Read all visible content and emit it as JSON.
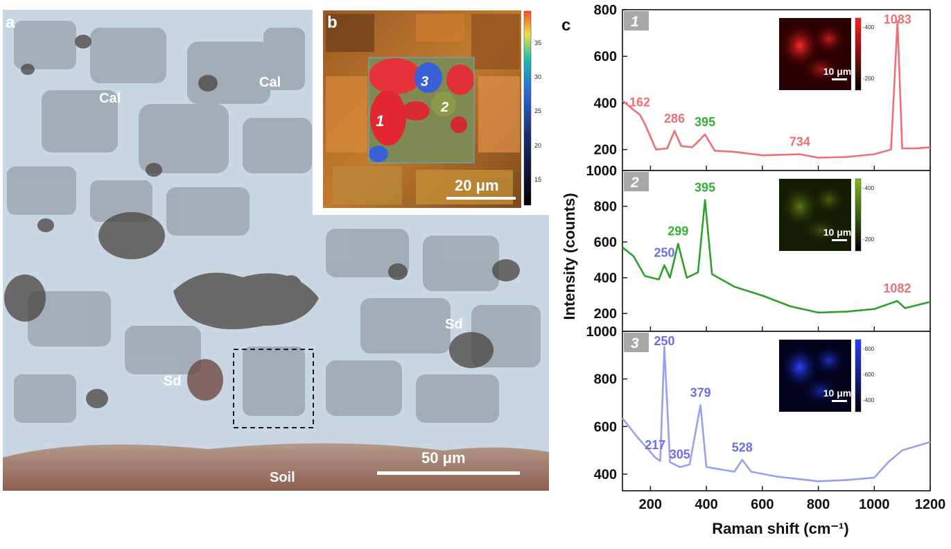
{
  "panel_a": {
    "letter": "a",
    "regions": [
      {
        "text": "Cal"
      },
      {
        "text": "Cal"
      },
      {
        "text": "Sd"
      },
      {
        "text": "Sd"
      },
      {
        "text": "Soil"
      }
    ],
    "scale_label": "50 μm"
  },
  "panel_b": {
    "letter": "b",
    "points": [
      "1",
      "2",
      "3"
    ],
    "scale_label": "20 μm",
    "colorbar_ticks": [
      "35",
      "30",
      "25",
      "20",
      "15"
    ]
  },
  "panel_c": {
    "letter": "c",
    "xlabel": "Raman shift (cm⁻¹)",
    "ylabel": "Intensity (counts)",
    "xticks": [
      "200",
      "400",
      "600",
      "800",
      "1000",
      "1200"
    ],
    "inset_scale": "10 μm"
  },
  "colors": {
    "spectrum1": "#ef6f72",
    "spectrum2": "#2ca02c",
    "spectrum3": "#98a0ef",
    "label_green": "#32b232",
    "label_blue": "#6b6ee8"
  },
  "chart_data": [
    {
      "type": "line",
      "panel_index": "1",
      "xlim": [
        100,
        1200
      ],
      "ylim": [
        110,
        800
      ],
      "yticks": [
        "200",
        "400",
        "600",
        "800"
      ],
      "inset_ticks": [
        "400",
        "200"
      ],
      "peaks": [
        {
          "x": 162,
          "label": "162"
        },
        {
          "x": 286,
          "label": "286"
        },
        {
          "x": 395,
          "label": "395"
        },
        {
          "x": 734,
          "label": "734"
        },
        {
          "x": 1083,
          "label": "1083"
        }
      ],
      "x": [
        100,
        140,
        162,
        180,
        220,
        260,
        286,
        310,
        350,
        395,
        430,
        500,
        600,
        734,
        800,
        900,
        1000,
        1060,
        1083,
        1100,
        1150,
        1200
      ],
      "y": [
        410,
        370,
        350,
        310,
        200,
        205,
        280,
        215,
        210,
        265,
        195,
        190,
        175,
        180,
        165,
        168,
        180,
        200,
        750,
        205,
        205,
        210
      ]
    },
    {
      "type": "line",
      "panel_index": "2",
      "xlim": [
        100,
        1200
      ],
      "ylim": [
        100,
        1000
      ],
      "yticks": [
        "200",
        "400",
        "600",
        "800",
        "1000"
      ],
      "inset_ticks": [
        "400",
        "200"
      ],
      "peaks": [
        {
          "x": 250,
          "label": "250"
        },
        {
          "x": 299,
          "label": "299"
        },
        {
          "x": 395,
          "label": "395"
        },
        {
          "x": 1082,
          "label": "1082"
        }
      ],
      "x": [
        100,
        140,
        180,
        230,
        250,
        270,
        299,
        330,
        370,
        395,
        420,
        500,
        600,
        700,
        800,
        900,
        1000,
        1082,
        1110,
        1200
      ],
      "y": [
        570,
        520,
        410,
        390,
        470,
        400,
        590,
        400,
        430,
        835,
        420,
        350,
        300,
        240,
        205,
        210,
        225,
        270,
        230,
        265
      ]
    },
    {
      "type": "line",
      "panel_index": "3",
      "xlim": [
        100,
        1200
      ],
      "ylim": [
        330,
        1000
      ],
      "yticks": [
        "400",
        "600",
        "800",
        "1000"
      ],
      "inset_ticks": [
        "800",
        "600",
        "400"
      ],
      "peaks": [
        {
          "x": 217,
          "label": "217"
        },
        {
          "x": 250,
          "label": "250"
        },
        {
          "x": 305,
          "label": "305"
        },
        {
          "x": 379,
          "label": "379"
        },
        {
          "x": 528,
          "label": "528"
        }
      ],
      "x": [
        100,
        150,
        217,
        235,
        250,
        270,
        305,
        340,
        379,
        400,
        450,
        500,
        528,
        560,
        650,
        800,
        900,
        1000,
        1050,
        1100,
        1200
      ],
      "y": [
        635,
        560,
        470,
        455,
        935,
        450,
        430,
        440,
        690,
        430,
        420,
        410,
        460,
        410,
        390,
        370,
        375,
        385,
        450,
        500,
        535
      ]
    }
  ]
}
